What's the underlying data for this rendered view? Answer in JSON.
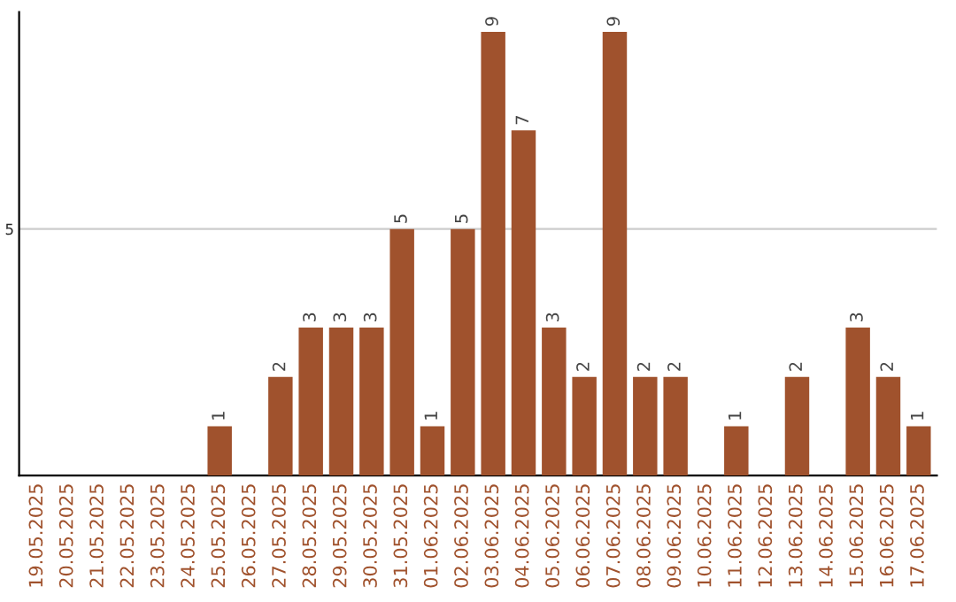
{
  "chart_data": {
    "type": "bar",
    "categories": [
      "19.05.2025",
      "20.05.2025",
      "21.05.2025",
      "22.05.2025",
      "23.05.2025",
      "24.05.2025",
      "25.05.2025",
      "26.05.2025",
      "27.05.2025",
      "28.05.2025",
      "29.05.2025",
      "30.05.2025",
      "31.05.2025",
      "01.06.2025",
      "02.06.2025",
      "03.06.2025",
      "04.06.2025",
      "05.06.2025",
      "06.06.2025",
      "07.06.2025",
      "08.06.2025",
      "09.06.2025",
      "10.06.2025",
      "11.06.2025",
      "12.06.2025",
      "13.06.2025",
      "14.06.2025",
      "15.06.2025",
      "16.06.2025",
      "17.06.2025"
    ],
    "values": [
      0,
      0,
      0,
      0,
      0,
      0,
      1,
      0,
      2,
      3,
      3,
      3,
      5,
      1,
      5,
      9,
      7,
      3,
      2,
      9,
      2,
      2,
      0,
      1,
      0,
      2,
      0,
      3,
      2,
      1
    ],
    "value_labels": [
      null,
      null,
      null,
      null,
      null,
      null,
      "1",
      null,
      "2",
      "3",
      "3",
      "3",
      "5",
      "1",
      "5",
      "9",
      "7",
      "3",
      "2",
      "9",
      "2",
      "2",
      null,
      "1",
      null,
      "2",
      null,
      "3",
      "2",
      "1"
    ],
    "color": "#a0522d",
    "ylim": [
      0,
      9.4
    ],
    "yticks": [
      5
    ],
    "grid": "y"
  }
}
